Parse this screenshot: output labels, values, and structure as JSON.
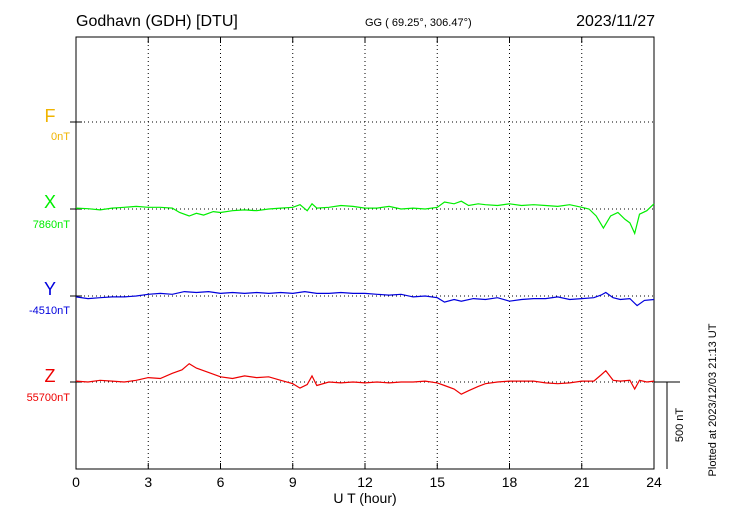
{
  "header": {
    "station": "Godhavn (GDH)  [DTU]",
    "coords": "GG ( 69.25°, 306.47°)",
    "date": "2023/11/27"
  },
  "side": {
    "plotted": "Plotted at 2023/12/03 21:13 UT",
    "scale_label": "500 nT"
  },
  "chart_data": {
    "type": "line",
    "xlabel": "U T (hour)",
    "xlim": [
      0,
      24
    ],
    "xticks": [
      "0",
      "3",
      "6",
      "9",
      "12",
      "15",
      "18",
      "21",
      "24"
    ],
    "scale_bar_nT": 500,
    "grid": true,
    "series": [
      {
        "name": "F",
        "baseline_label": "0nT",
        "color": "#f0b400",
        "points": []
      },
      {
        "name": "X",
        "baseline_label": "7860nT",
        "color": "#00ee00",
        "points": [
          [
            0,
            5
          ],
          [
            0.5,
            2
          ],
          [
            1,
            -5
          ],
          [
            1.5,
            5
          ],
          [
            2,
            10
          ],
          [
            2.5,
            15
          ],
          [
            3,
            10
          ],
          [
            3.5,
            10
          ],
          [
            4,
            5
          ],
          [
            4.3,
            -20
          ],
          [
            4.7,
            -40
          ],
          [
            5,
            -25
          ],
          [
            5.3,
            -35
          ],
          [
            5.7,
            -15
          ],
          [
            6,
            -20
          ],
          [
            6.5,
            -10
          ],
          [
            7,
            -5
          ],
          [
            7.5,
            -10
          ],
          [
            8,
            0
          ],
          [
            8.5,
            5
          ],
          [
            9,
            10
          ],
          [
            9.3,
            25
          ],
          [
            9.6,
            -10
          ],
          [
            9.8,
            30
          ],
          [
            10,
            5
          ],
          [
            10.5,
            10
          ],
          [
            11,
            20
          ],
          [
            11.5,
            15
          ],
          [
            12,
            5
          ],
          [
            12.5,
            5
          ],
          [
            13,
            15
          ],
          [
            13.5,
            0
          ],
          [
            14,
            5
          ],
          [
            14.5,
            0
          ],
          [
            15,
            10
          ],
          [
            15.3,
            40
          ],
          [
            15.7,
            30
          ],
          [
            16,
            45
          ],
          [
            16.3,
            20
          ],
          [
            16.7,
            30
          ],
          [
            17,
            25
          ],
          [
            17.5,
            20
          ],
          [
            18,
            30
          ],
          [
            18.5,
            20
          ],
          [
            19,
            25
          ],
          [
            19.5,
            20
          ],
          [
            20,
            15
          ],
          [
            20.5,
            25
          ],
          [
            21,
            10
          ],
          [
            21.3,
            0
          ],
          [
            21.6,
            -40
          ],
          [
            21.9,
            -110
          ],
          [
            22.2,
            -40
          ],
          [
            22.5,
            -20
          ],
          [
            22.8,
            -60
          ],
          [
            23,
            -80
          ],
          [
            23.2,
            -140
          ],
          [
            23.4,
            -30
          ],
          [
            23.7,
            -10
          ],
          [
            24,
            30
          ]
        ]
      },
      {
        "name": "Y",
        "baseline_label": "-4510nT",
        "color": "#0000dd",
        "points": [
          [
            0,
            -5
          ],
          [
            0.5,
            -15
          ],
          [
            1,
            -10
          ],
          [
            1.5,
            -5
          ],
          [
            2,
            -5
          ],
          [
            2.5,
            0
          ],
          [
            3,
            10
          ],
          [
            3.5,
            15
          ],
          [
            4,
            10
          ],
          [
            4.5,
            25
          ],
          [
            5,
            20
          ],
          [
            5.5,
            25
          ],
          [
            6,
            15
          ],
          [
            6.5,
            20
          ],
          [
            7,
            15
          ],
          [
            7.5,
            20
          ],
          [
            8,
            15
          ],
          [
            8.5,
            20
          ],
          [
            9,
            15
          ],
          [
            9.5,
            25
          ],
          [
            10,
            15
          ],
          [
            10.5,
            15
          ],
          [
            11,
            20
          ],
          [
            11.5,
            15
          ],
          [
            12,
            15
          ],
          [
            12.5,
            10
          ],
          [
            13,
            5
          ],
          [
            13.5,
            10
          ],
          [
            14,
            -5
          ],
          [
            14.5,
            0
          ],
          [
            15,
            -10
          ],
          [
            15.3,
            -35
          ],
          [
            15.7,
            -20
          ],
          [
            16,
            -30
          ],
          [
            16.5,
            -15
          ],
          [
            17,
            -20
          ],
          [
            17.5,
            -10
          ],
          [
            18,
            -30
          ],
          [
            18.5,
            -20
          ],
          [
            19,
            -15
          ],
          [
            19.5,
            -15
          ],
          [
            20,
            -5
          ],
          [
            20.5,
            -20
          ],
          [
            21,
            -15
          ],
          [
            21.5,
            -10
          ],
          [
            21.8,
            5
          ],
          [
            22,
            20
          ],
          [
            22.3,
            -10
          ],
          [
            22.6,
            -20
          ],
          [
            23,
            -15
          ],
          [
            23.3,
            -55
          ],
          [
            23.6,
            -25
          ],
          [
            24,
            -20
          ]
        ]
      },
      {
        "name": "Z",
        "baseline_label": "55700nT",
        "color": "#ee0000",
        "points": [
          [
            0,
            5
          ],
          [
            0.5,
            0
          ],
          [
            1,
            10
          ],
          [
            1.5,
            5
          ],
          [
            2,
            0
          ],
          [
            2.5,
            10
          ],
          [
            3,
            25
          ],
          [
            3.5,
            20
          ],
          [
            4,
            50
          ],
          [
            4.4,
            70
          ],
          [
            4.7,
            105
          ],
          [
            5,
            80
          ],
          [
            5.5,
            55
          ],
          [
            6,
            30
          ],
          [
            6.5,
            20
          ],
          [
            7,
            35
          ],
          [
            7.5,
            25
          ],
          [
            8,
            30
          ],
          [
            8.5,
            10
          ],
          [
            9,
            -10
          ],
          [
            9.3,
            -35
          ],
          [
            9.6,
            -15
          ],
          [
            9.8,
            35
          ],
          [
            10,
            -20
          ],
          [
            10.5,
            0
          ],
          [
            11,
            -5
          ],
          [
            11.5,
            0
          ],
          [
            12,
            -5
          ],
          [
            12.5,
            0
          ],
          [
            13,
            -5
          ],
          [
            13.5,
            0
          ],
          [
            14,
            0
          ],
          [
            14.5,
            5
          ],
          [
            15,
            -5
          ],
          [
            15.3,
            -20
          ],
          [
            15.7,
            -40
          ],
          [
            16,
            -70
          ],
          [
            16.3,
            -50
          ],
          [
            16.7,
            -25
          ],
          [
            17,
            -10
          ],
          [
            17.5,
            0
          ],
          [
            18,
            5
          ],
          [
            18.5,
            5
          ],
          [
            19,
            5
          ],
          [
            19.5,
            -5
          ],
          [
            20,
            -10
          ],
          [
            20.5,
            -5
          ],
          [
            21,
            5
          ],
          [
            21.5,
            5
          ],
          [
            21.8,
            40
          ],
          [
            22,
            65
          ],
          [
            22.3,
            10
          ],
          [
            22.6,
            5
          ],
          [
            23,
            10
          ],
          [
            23.2,
            -40
          ],
          [
            23.4,
            10
          ],
          [
            23.7,
            0
          ],
          [
            24,
            5
          ]
        ]
      }
    ]
  }
}
